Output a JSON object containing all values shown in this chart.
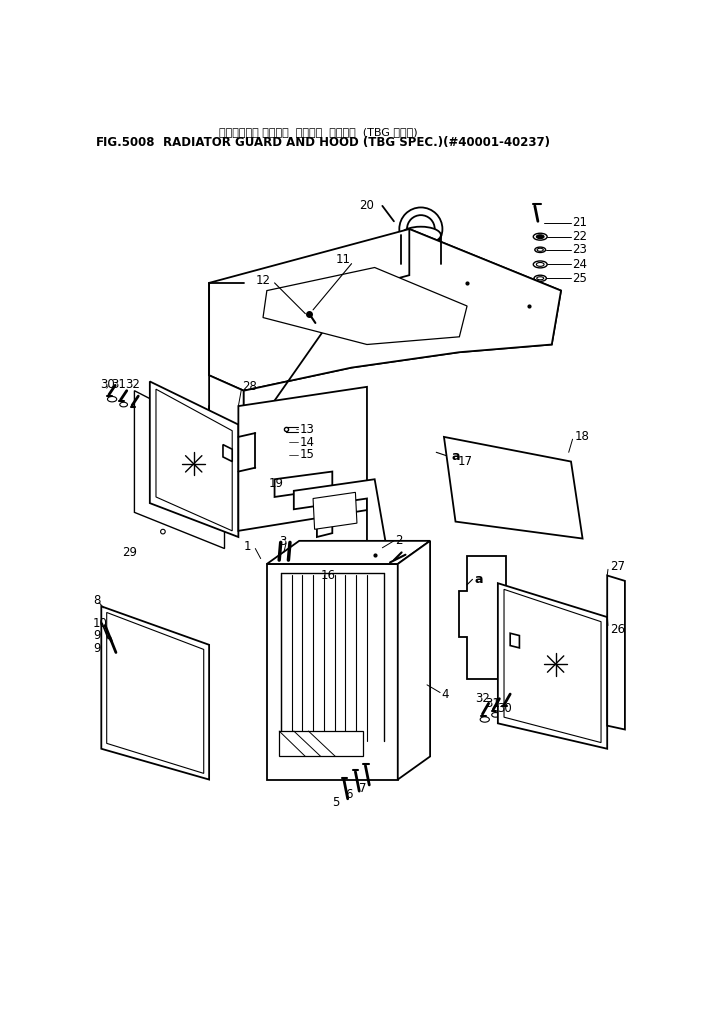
{
  "title_line1": "ラシ゜エータ ガート゜  オラビ゜  フート゜  (TBG シヨウ)",
  "title_line2": "RADIATOR GUARD AND HOOD (TBG SPEC.)(#40001-40237)",
  "fig_label": "FIG.5008",
  "bg_color": "#ffffff",
  "line_color": "#000000",
  "text_color": "#000000",
  "figsize": [
    7.04,
    10.1
  ],
  "dpi": 100
}
